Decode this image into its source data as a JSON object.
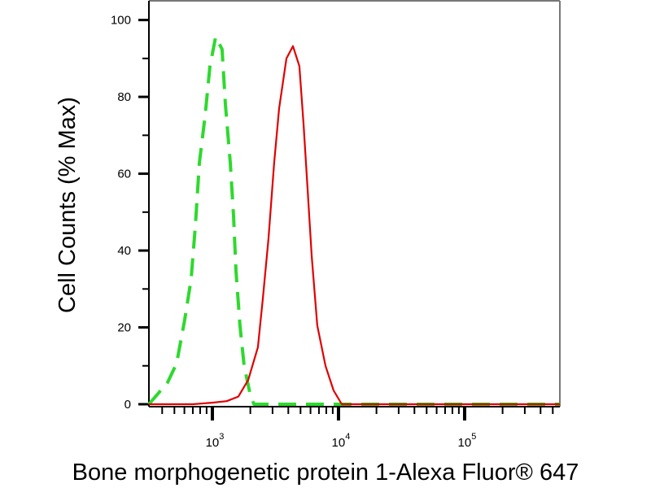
{
  "chart_data": {
    "type": "line",
    "title": "",
    "xlabel": "Bone morphogenetic protein 1-Alexa Fluor® 647",
    "ylabel": "Cell Counts (% Max)",
    "xscale": "log",
    "xlim": [
      314,
      569000
    ],
    "ylim": [
      0,
      105
    ],
    "grid": false,
    "x_ticks": [
      {
        "base": "10",
        "exp": "3",
        "value": 1000
      },
      {
        "base": "10",
        "exp": "4",
        "value": 10000
      },
      {
        "base": "10",
        "exp": "5",
        "value": 100000
      }
    ],
    "y_ticks": [
      {
        "label": "0",
        "value": 0
      },
      {
        "label": "20",
        "value": 20
      },
      {
        "label": "40",
        "value": 40
      },
      {
        "label": "60",
        "value": 60
      },
      {
        "label": "80",
        "value": 80
      },
      {
        "label": "100",
        "value": 100
      }
    ],
    "series": [
      {
        "style": "dashed",
        "color": "#2ed92e",
        "x": [
          314,
          442,
          520,
          604,
          679,
          733,
          789,
          875,
          957,
          1062,
          1194,
          1268,
          1387,
          1472,
          1538,
          1656,
          1786,
          1982,
          2133,
          569000
        ],
        "y": [
          0,
          5.7,
          10.6,
          22,
          32.6,
          46.5,
          62.8,
          75,
          88,
          95.6,
          92.4,
          78,
          62.8,
          49,
          34.7,
          20.5,
          10,
          3,
          0,
          0
        ]
      },
      {
        "style": "solid",
        "color": "#e00000",
        "x": [
          314,
          700,
          1000,
          1300,
          1607,
          1923,
          2296,
          2512,
          2786,
          3090,
          3381,
          3864,
          4355,
          4898,
          5284,
          5689,
          6124,
          6792,
          7889,
          9141,
          10617,
          569000
        ],
        "y": [
          0,
          0,
          0.4,
          0.8,
          2,
          6.3,
          14.8,
          27.5,
          43,
          62.8,
          77,
          90,
          93.2,
          88,
          73,
          56,
          38.7,
          20.5,
          10,
          3.6,
          0,
          0
        ]
      }
    ]
  }
}
